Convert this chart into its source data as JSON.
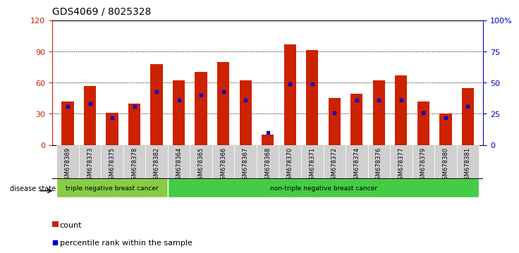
{
  "title": "GDS4069 / 8025328",
  "samples": [
    "GSM678369",
    "GSM678373",
    "GSM678375",
    "GSM678378",
    "GSM678382",
    "GSM678364",
    "GSM678365",
    "GSM678366",
    "GSM678367",
    "GSM678368",
    "GSM678370",
    "GSM678371",
    "GSM678372",
    "GSM678374",
    "GSM678376",
    "GSM678377",
    "GSM678379",
    "GSM678380",
    "GSM678381"
  ],
  "counts": [
    42,
    57,
    31,
    40,
    78,
    62,
    70,
    80,
    62,
    10,
    97,
    91,
    45,
    49,
    62,
    67,
    42,
    30,
    55
  ],
  "percentiles": [
    31,
    33,
    22,
    31,
    43,
    36,
    40,
    43,
    36,
    10,
    49,
    49,
    26,
    36,
    36,
    36,
    26,
    22,
    31
  ],
  "bar_color": "#cc2200",
  "marker_color": "#0000cc",
  "ylim_left": [
    0,
    120
  ],
  "ylim_right": [
    0,
    100
  ],
  "yticks_left": [
    0,
    30,
    60,
    90,
    120
  ],
  "yticks_right": [
    0,
    25,
    50,
    75,
    100
  ],
  "ytick_labels_right": [
    "0",
    "25",
    "50",
    "75",
    "100%"
  ],
  "groups": [
    {
      "label": "triple negative breast cancer",
      "start": 0,
      "end": 5,
      "color": "#88cc44"
    },
    {
      "label": "non-triple negative breast cancer",
      "start": 5,
      "end": 19,
      "color": "#44cc44"
    }
  ],
  "group_label": "disease state",
  "legend_count": "count",
  "legend_percentile": "percentile rank within the sample",
  "left_axis_color": "#cc2200",
  "right_axis_color": "#0000cc",
  "bar_width": 0.55,
  "tick_bg_color": "#d0d0d0"
}
